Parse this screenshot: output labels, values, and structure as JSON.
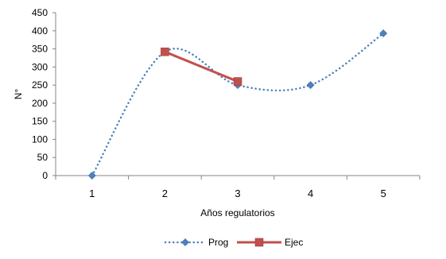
{
  "chart_data": {
    "type": "line",
    "xlabel": "Años regulatorios",
    "ylabel": "N°",
    "categories": [
      "1",
      "2",
      "3",
      "4",
      "5"
    ],
    "ylim": [
      0,
      450
    ],
    "yticks": [
      "0",
      "50",
      "100",
      "150",
      "200",
      "250",
      "300",
      "350",
      "400",
      "450"
    ],
    "grid": false,
    "legend_position": "bottom",
    "series": [
      {
        "name": "Prog",
        "style": "dotted-smooth",
        "marker": "diamond",
        "color": "#4F81BD",
        "x": [
          1,
          2,
          3,
          4,
          5
        ],
        "values": [
          0,
          342,
          250,
          250,
          393
        ]
      },
      {
        "name": "Ejec",
        "style": "solid",
        "marker": "square",
        "color": "#C0504D",
        "x": [
          2,
          3
        ],
        "values": [
          342,
          260
        ]
      }
    ]
  }
}
